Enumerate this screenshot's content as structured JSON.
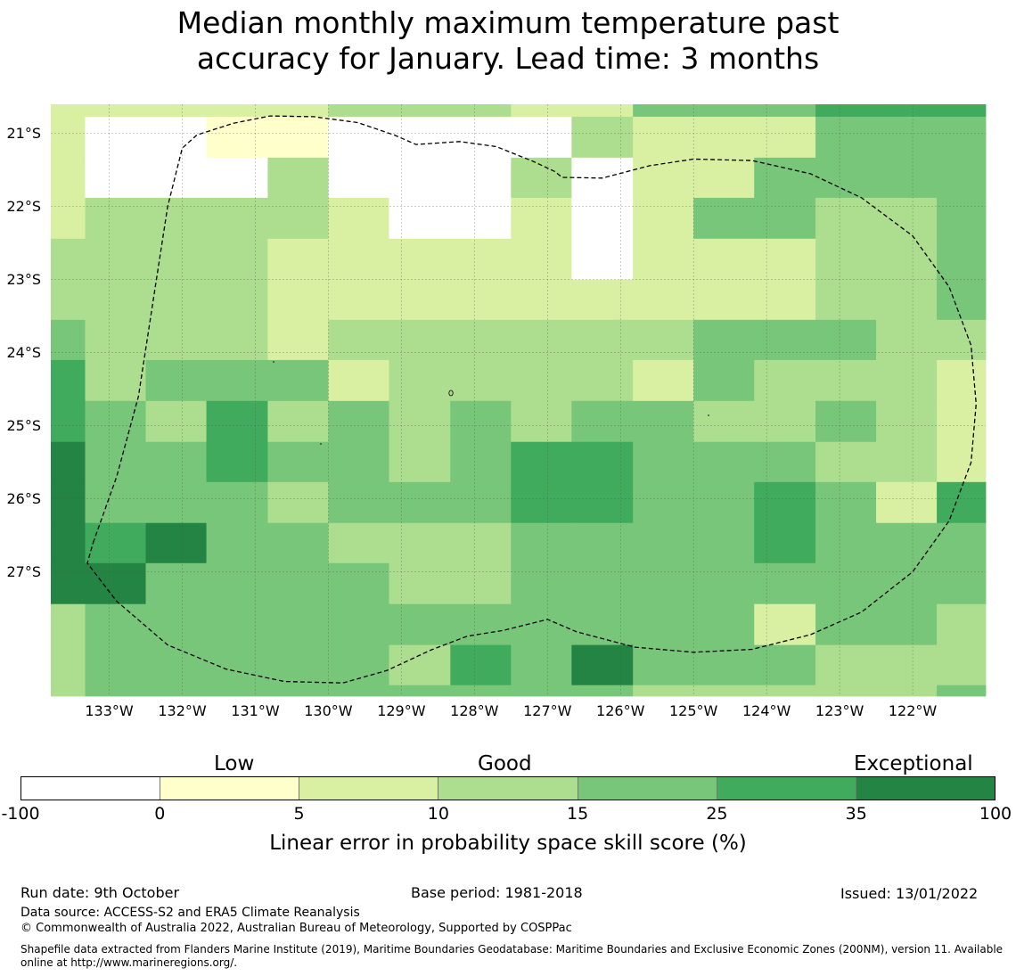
{
  "title": {
    "line1": "Median monthly maximum temperature past",
    "line2": "accuracy for January. Lead time: 3 months"
  },
  "map": {
    "lat_labels": [
      "21°S",
      "22°S",
      "23°S",
      "24°S",
      "25°S",
      "26°S",
      "27°S"
    ],
    "lat_values": [
      -21,
      -22,
      -23,
      -24,
      -25,
      -26,
      -27
    ],
    "lon_labels": [
      "133°W",
      "132°W",
      "131°W",
      "130°W",
      "129°W",
      "128°W",
      "127°W",
      "126°W",
      "125°W",
      "124°W",
      "123°W",
      "122°W"
    ],
    "lon_values": [
      -133,
      -132,
      -131,
      -130,
      -129,
      -128,
      -127,
      -126,
      -125,
      -124,
      -123,
      -122
    ],
    "extent": {
      "lon_min": -133.8,
      "lon_max": -121.0,
      "lat_max": -20.6,
      "lat_min": -28.7
    },
    "grid_spacing_deg": 0.833,
    "col_edges_lon": [
      -133.8,
      -133.33,
      -132.5,
      -131.67,
      -130.83,
      -130.0,
      -129.17,
      -128.33,
      -127.5,
      -126.67,
      -125.83,
      -125.0,
      -124.17,
      -123.33,
      -122.5,
      -121.67,
      -121.0
    ],
    "row_edges_lat": [
      -20.6,
      -20.77,
      -21.33,
      -21.88,
      -22.44,
      -23.0,
      -23.55,
      -24.1,
      -24.66,
      -25.22,
      -25.77,
      -26.33,
      -26.88,
      -27.44,
      -28.0,
      -28.55,
      -28.7
    ],
    "skill_categories": [
      "2222233322444555",
      "2001100003222444",
      "2000300030224444",
      "2333320020244334",
      "3333222220222334",
      "3333222222222334",
      "4333233333344433",
      "5344423333243332",
      "5435343434433432",
      "6445443455444332",
      "6444344455445425",
      "6564433344445444",
      "6644443344444444",
      "3444444444442443",
      "3444443546444333",
      "3444444444333334"
    ],
    "eez_boundary_lonlat": [
      [
        -133.22,
        -26.6
      ],
      [
        -132.9,
        -25.7
      ],
      [
        -132.6,
        -24.6
      ],
      [
        -132.4,
        -23.3
      ],
      [
        -132.2,
        -22.0
      ],
      [
        -132.0,
        -21.2
      ],
      [
        -131.8,
        -21.02
      ],
      [
        -131.3,
        -20.86
      ],
      [
        -130.8,
        -20.76
      ],
      [
        -130.2,
        -20.77
      ],
      [
        -129.6,
        -20.85
      ],
      [
        -129.1,
        -21.02
      ],
      [
        -128.8,
        -21.15
      ],
      [
        -128.2,
        -21.11
      ],
      [
        -127.7,
        -21.18
      ],
      [
        -127.2,
        -21.38
      ],
      [
        -126.9,
        -21.52
      ],
      [
        -126.8,
        -21.6
      ],
      [
        -126.25,
        -21.61
      ],
      [
        -125.6,
        -21.44
      ],
      [
        -125.0,
        -21.35
      ],
      [
        -124.2,
        -21.37
      ],
      [
        -123.4,
        -21.55
      ],
      [
        -122.7,
        -21.88
      ],
      [
        -122.0,
        -22.4
      ],
      [
        -121.5,
        -23.1
      ],
      [
        -121.2,
        -23.9
      ],
      [
        -121.13,
        -24.7
      ],
      [
        -121.2,
        -25.5
      ],
      [
        -121.5,
        -26.3
      ],
      [
        -122.0,
        -27.0
      ],
      [
        -122.7,
        -27.55
      ],
      [
        -123.4,
        -27.86
      ],
      [
        -124.2,
        -28.06
      ],
      [
        -125.0,
        -28.1
      ],
      [
        -125.8,
        -28.03
      ],
      [
        -126.6,
        -27.82
      ],
      [
        -127.0,
        -27.65
      ],
      [
        -127.6,
        -27.8
      ],
      [
        -128.1,
        -27.88
      ],
      [
        -128.6,
        -28.07
      ],
      [
        -129.2,
        -28.35
      ],
      [
        -129.8,
        -28.52
      ],
      [
        -130.6,
        -28.5
      ],
      [
        -131.4,
        -28.33
      ],
      [
        -132.2,
        -28.0
      ],
      [
        -132.9,
        -27.4
      ],
      [
        -133.3,
        -26.88
      ],
      [
        -133.22,
        -26.6
      ]
    ]
  },
  "legend": {
    "category_labels": [
      "Low",
      "Good",
      "Exceptional"
    ],
    "ticks": [
      "-100",
      "0",
      "5",
      "10",
      "15",
      "25",
      "35",
      "100"
    ],
    "colors": [
      "#ffffff",
      "#ffffcc",
      "#d9f0a3",
      "#addd8e",
      "#78c679",
      "#41ab5d",
      "#238443"
    ],
    "title": "Linear error in probability space skill score (%)"
  },
  "footer": {
    "run_date": "Run date: 9th October",
    "base_period": "Base period: 1981-2018",
    "issued": "Issued: 13/01/2022",
    "data_source": "Data source: ACCESS-S2 and ERA5 Climate Reanalysis",
    "copyright": "© Commonwealth of Australia 2022, Australian Bureau of Meteorology, Supported by COSPPac",
    "shapefile_note": "Shapefile data extracted from Flanders Marine Institute (2019), Maritime Boundaries Geodatabase: Maritime Boundaries and Exclusive Economic Zones (200NM), version 11. Available online at http://www.marineregions.org/."
  }
}
